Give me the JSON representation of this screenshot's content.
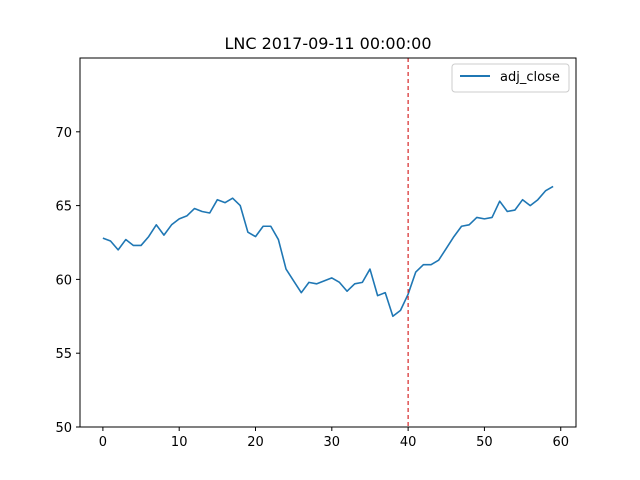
{
  "chart_data": {
    "type": "line",
    "title": "LNC 2017-09-11 00:00:00",
    "xlabel": "",
    "ylabel": "",
    "xlim": [
      -3,
      62
    ],
    "ylim": [
      50,
      75
    ],
    "xticks": [
      0,
      10,
      20,
      30,
      40,
      50,
      60
    ],
    "yticks": [
      50,
      55,
      60,
      65,
      70
    ],
    "grid": false,
    "legend": "top-right",
    "vline": {
      "x": 40,
      "color": "#d62728",
      "style": "dashed"
    },
    "series": [
      {
        "name": "adj_close",
        "color": "#1f77b4",
        "x": [
          0,
          1,
          2,
          3,
          4,
          5,
          6,
          7,
          8,
          9,
          10,
          11,
          12,
          13,
          14,
          15,
          16,
          17,
          18,
          19,
          20,
          21,
          22,
          23,
          24,
          25,
          26,
          27,
          28,
          29,
          30,
          31,
          32,
          33,
          34,
          35,
          36,
          37,
          38,
          39,
          40,
          41,
          42,
          43,
          44,
          45,
          46,
          47,
          48,
          49,
          50,
          51,
          52,
          53,
          54,
          55,
          56,
          57,
          58,
          59
        ],
        "values": [
          62.8,
          62.6,
          62.0,
          62.7,
          62.3,
          62.3,
          62.9,
          63.7,
          63.0,
          63.7,
          64.1,
          64.3,
          64.8,
          64.6,
          64.5,
          65.4,
          65.2,
          65.5,
          65.0,
          63.2,
          62.9,
          63.6,
          63.6,
          62.7,
          60.7,
          59.9,
          59.1,
          59.8,
          59.7,
          59.9,
          60.1,
          59.8,
          59.2,
          59.7,
          59.8,
          60.7,
          58.9,
          59.1,
          57.5,
          57.9,
          59.0,
          60.5,
          61.0,
          61.0,
          61.3,
          62.1,
          62.9,
          63.6,
          63.7,
          64.2,
          64.1,
          64.2,
          65.3,
          64.6,
          64.7,
          65.4,
          65.0,
          65.4,
          66.0,
          66.3
        ]
      }
    ]
  }
}
